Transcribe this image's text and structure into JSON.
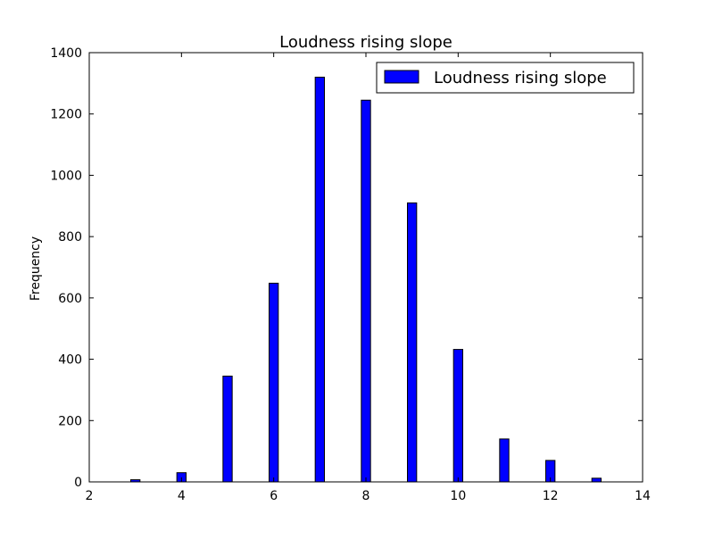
{
  "chart_data": {
    "type": "bar",
    "title": "Loudness rising slope",
    "xlabel": "",
    "ylabel": "Frequency",
    "xlim": [
      2,
      14
    ],
    "ylim": [
      0,
      1400
    ],
    "xticks": [
      2,
      4,
      6,
      8,
      10,
      12,
      14
    ],
    "yticks": [
      0,
      200,
      400,
      600,
      800,
      1000,
      1200,
      1400
    ],
    "xtick_labels": [
      "2",
      "4",
      "6",
      "8",
      "10",
      "12",
      "14"
    ],
    "ytick_labels": [
      "0",
      "200",
      "400",
      "600",
      "800",
      "1000",
      "1200",
      "1400"
    ],
    "bar_width": 0.2,
    "legend_position": "top-right",
    "grid": false,
    "series": [
      {
        "name": "Loudness rising slope",
        "color": "#0000ff",
        "x": [
          3,
          4,
          5,
          6,
          7,
          8,
          9,
          10,
          11,
          12,
          13
        ],
        "values": [
          7,
          30,
          345,
          648,
          1320,
          1245,
          910,
          432,
          140,
          70,
          12
        ]
      }
    ]
  }
}
